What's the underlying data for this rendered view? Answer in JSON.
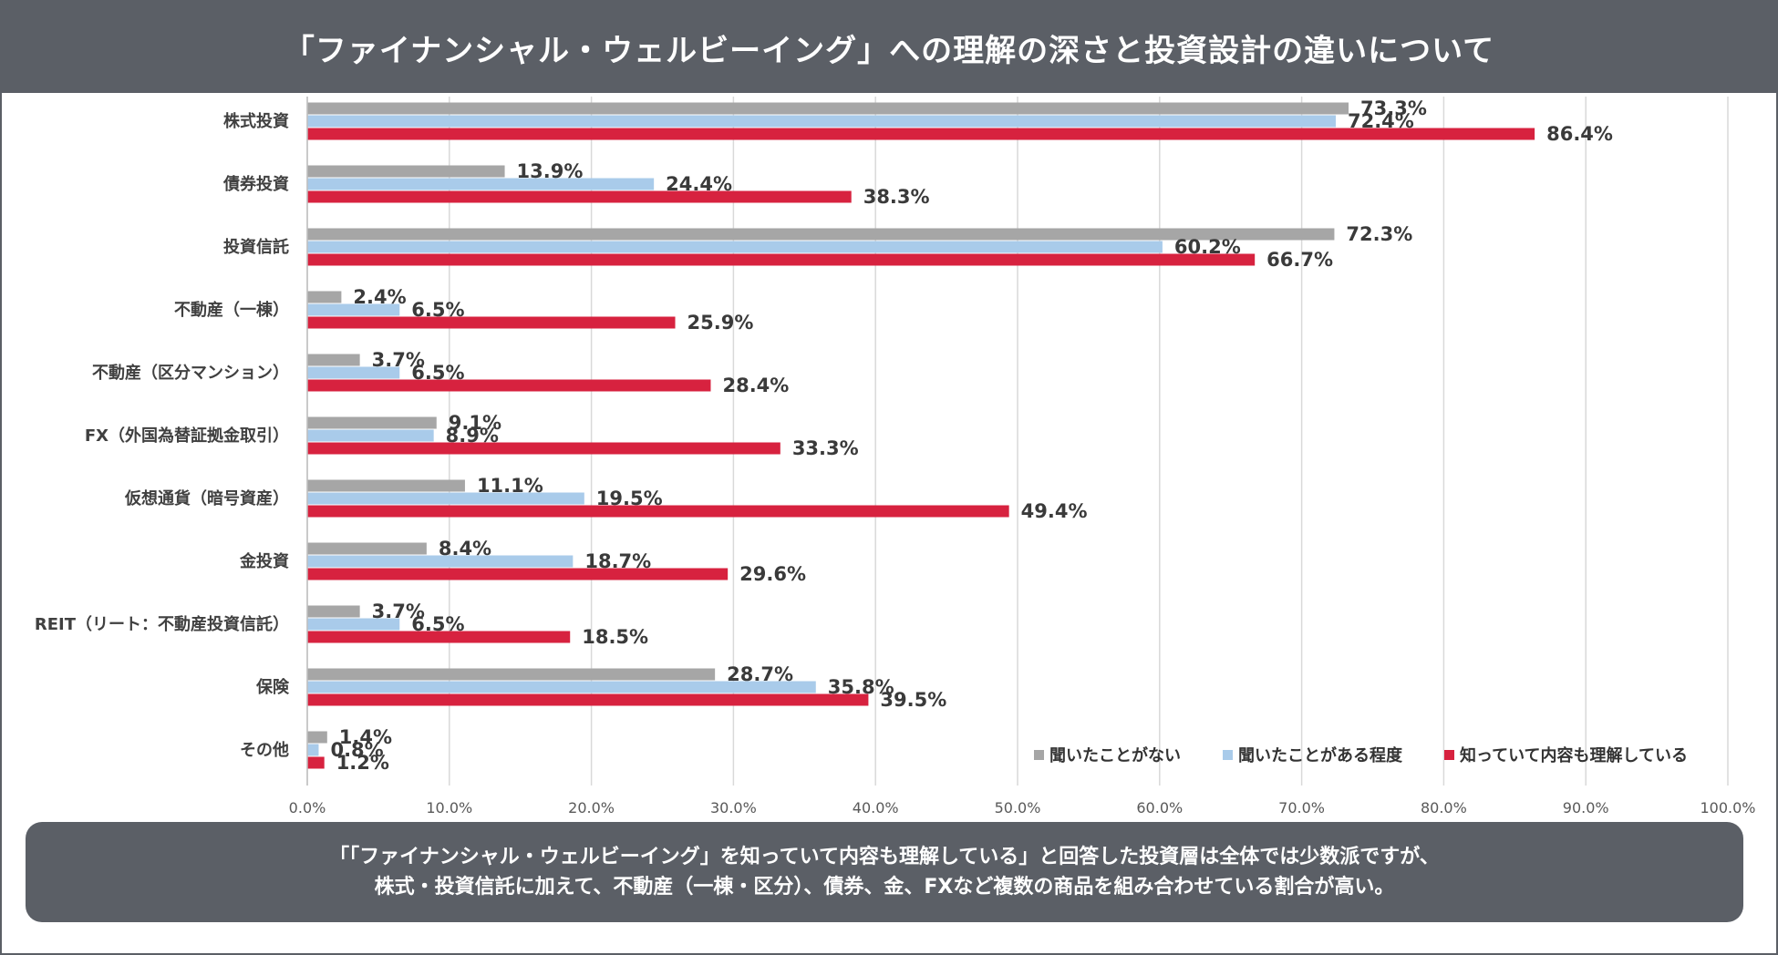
{
  "header": {
    "title": "「ファイナンシャル・ウェルビーイング」への理解の深さと投資設計の違いについて"
  },
  "footer": {
    "line1": "「「ファイナンシャル・ウェルビーイング」を知っていて内容も理解している」と回答した投資層は全体では少数派ですが、",
    "line2": "株式・投資信託に加えて、不動産（一棟・区分）、債券、金、FXなど複数の商品を組み合わせている割合が高い。"
  },
  "colors": {
    "series1": "#a6a6a6",
    "series2": "#a9cbea",
    "series3": "#d7223f",
    "grid": "#d9d9d9",
    "header": "#5b5f66"
  },
  "chart_data": {
    "type": "bar",
    "orientation": "horizontal",
    "categories": [
      "株式投資",
      "債券投資",
      "投資信託",
      "不動産（一棟）",
      "不動産（区分マンション）",
      "FX（外国為替証拠金取引）",
      "仮想通貨（暗号資産）",
      "金投資",
      "REIT（リート：不動産投資信託）",
      "保険",
      "その他"
    ],
    "series": [
      {
        "name": "聞いたことがない",
        "values": [
          73.3,
          13.9,
          72.3,
          2.4,
          3.7,
          9.1,
          11.1,
          8.4,
          3.7,
          28.7,
          1.4
        ],
        "labels": [
          "73.3%",
          "13.9%",
          "72.3%",
          "2.4%",
          "3.7%",
          "9.1%",
          "11.1%",
          "8.4%",
          "3.7%",
          "28.7%",
          "1.4%"
        ]
      },
      {
        "name": "聞いたことがある程度",
        "values": [
          72.4,
          24.4,
          60.2,
          6.5,
          6.5,
          8.9,
          19.5,
          18.7,
          6.5,
          35.8,
          0.8
        ],
        "labels": [
          "72.4%",
          "24.4%",
          "60.2%",
          "6.5%",
          "6.5%",
          "8.9%",
          "19.5%",
          "18.7%",
          "6.5%",
          "35.8%",
          "0.8%"
        ]
      },
      {
        "name": "知っていて内容も理解している",
        "values": [
          86.4,
          38.3,
          66.7,
          25.9,
          28.4,
          33.3,
          49.4,
          29.6,
          18.5,
          39.5,
          1.2
        ],
        "labels": [
          "86.4%",
          "38.3%",
          "66.7%",
          "25.9%",
          "28.4%",
          "33.3%",
          "49.4%",
          "29.6%",
          "18.5%",
          "39.5%",
          "1.2%"
        ]
      }
    ],
    "xlim": [
      0,
      100
    ],
    "xticks": [
      "0.0%",
      "10.0%",
      "20.0%",
      "30.0%",
      "40.0%",
      "50.0%",
      "60.0%",
      "70.0%",
      "80.0%",
      "90.0%",
      "100.0%"
    ],
    "legend_position": "bottom-right-inside",
    "grid": true
  }
}
